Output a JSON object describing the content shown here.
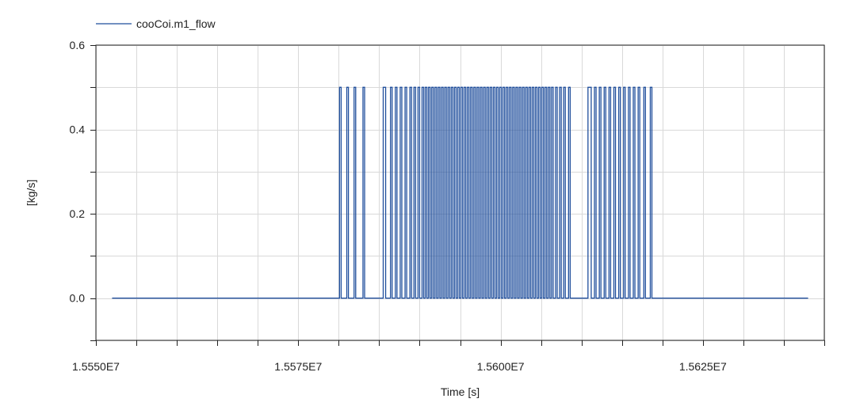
{
  "chart_data": {
    "type": "line",
    "title": "",
    "xlabel": "Time [s]",
    "ylabel": "[kg/s]",
    "xlim": [
      15550000,
      15640000
    ],
    "ylim": [
      -0.1,
      0.6
    ],
    "x_ticks": [
      15550000,
      15575000,
      15600000,
      15625000
    ],
    "x_tick_labels": [
      "1.5550E7",
      "1.5575E7",
      "1.5600E7",
      "1.5625E7"
    ],
    "x_minor_step": 5000,
    "y_ticks": [
      0.0,
      0.2,
      0.4,
      0.6
    ],
    "y_tick_labels": [
      "0.0",
      "0.2",
      "0.4",
      "0.6"
    ],
    "y_minor_step": 0.1,
    "grid": true,
    "legend_position": "top-left",
    "series": [
      {
        "name": "cooCoi.m1_flow",
        "color": "#1f4e9c",
        "x_start": 15552000,
        "x_end": 15638000,
        "low_value": 0.0,
        "high_value": 0.5,
        "on_intervals": [
          [
            15580100,
            15580300
          ],
          [
            15581000,
            15581200
          ],
          [
            15581900,
            15582100
          ],
          [
            15583000,
            15583200
          ],
          [
            15585500,
            15585800
          ],
          [
            15586400,
            15586600
          ],
          [
            15587000,
            15587200
          ],
          [
            15587600,
            15587800
          ],
          [
            15588200,
            15588400
          ],
          [
            15588800,
            15589000
          ],
          [
            15589300,
            15589500
          ],
          [
            15589800,
            15590000
          ],
          [
            15590300,
            15590500
          ],
          [
            15590700,
            15590900
          ],
          [
            15591100,
            15591300
          ],
          [
            15591500,
            15591700
          ],
          [
            15591900,
            15592100
          ],
          [
            15592300,
            15592500
          ],
          [
            15592700,
            15592900
          ],
          [
            15593100,
            15593300
          ],
          [
            15593500,
            15593700
          ],
          [
            15593900,
            15594100
          ],
          [
            15594300,
            15594500
          ],
          [
            15594700,
            15594900
          ],
          [
            15595100,
            15595300
          ],
          [
            15595500,
            15595700
          ],
          [
            15595900,
            15596100
          ],
          [
            15596300,
            15596500
          ],
          [
            15596700,
            15596900
          ],
          [
            15597100,
            15597300
          ],
          [
            15597500,
            15597700
          ],
          [
            15597900,
            15598100
          ],
          [
            15598300,
            15598500
          ],
          [
            15598700,
            15598900
          ],
          [
            15599100,
            15599300
          ],
          [
            15599500,
            15599700
          ],
          [
            15599900,
            15600100
          ],
          [
            15600300,
            15600500
          ],
          [
            15600700,
            15600900
          ],
          [
            15601100,
            15601300
          ],
          [
            15601500,
            15601700
          ],
          [
            15601900,
            15602100
          ],
          [
            15602300,
            15602500
          ],
          [
            15602700,
            15602900
          ],
          [
            15603100,
            15603300
          ],
          [
            15603500,
            15603700
          ],
          [
            15603900,
            15604100
          ],
          [
            15604300,
            15604500
          ],
          [
            15604700,
            15604900
          ],
          [
            15605100,
            15605300
          ],
          [
            15605500,
            15605700
          ],
          [
            15605900,
            15606100
          ],
          [
            15606300,
            15606500
          ],
          [
            15606800,
            15607000
          ],
          [
            15607300,
            15607500
          ],
          [
            15607800,
            15608000
          ],
          [
            15608400,
            15608600
          ],
          [
            15610800,
            15611200
          ],
          [
            15611600,
            15611800
          ],
          [
            15612200,
            15612400
          ],
          [
            15612800,
            15613000
          ],
          [
            15613400,
            15613600
          ],
          [
            15614000,
            15614200
          ],
          [
            15614600,
            15614800
          ],
          [
            15615200,
            15615400
          ],
          [
            15615800,
            15616000
          ],
          [
            15616400,
            15616600
          ],
          [
            15617000,
            15617200
          ],
          [
            15617700,
            15617900
          ],
          [
            15618500,
            15618700
          ]
        ]
      }
    ]
  }
}
